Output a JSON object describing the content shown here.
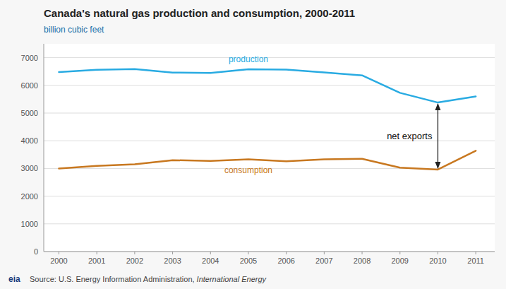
{
  "chart_data": {
    "type": "line",
    "title": "Canada's natural gas production and consumption, 2000-2011",
    "ylabel": "billion cubic feet",
    "x": [
      2000,
      2001,
      2002,
      2003,
      2004,
      2005,
      2006,
      2007,
      2008,
      2009,
      2010,
      2011
    ],
    "series": [
      {
        "name": "production",
        "color": "#29ABE2",
        "values": [
          6480,
          6560,
          6590,
          6460,
          6450,
          6580,
          6570,
          6470,
          6360,
          5730,
          5380,
          5600
        ]
      },
      {
        "name": "consumption",
        "color": "#C87820",
        "values": [
          3000,
          3090,
          3150,
          3300,
          3270,
          3330,
          3260,
          3330,
          3350,
          3030,
          2960,
          3640
        ]
      }
    ],
    "xlim": [
      1999.6,
      2011.5
    ],
    "xticks": [
      2000,
      2001,
      2002,
      2003,
      2004,
      2005,
      2006,
      2007,
      2008,
      2009,
      2010,
      2011
    ],
    "ylim": [
      0,
      7500
    ],
    "yticks": [
      0,
      1000,
      2000,
      3000,
      4000,
      5000,
      6000,
      7000
    ],
    "grid": true,
    "annotations": [
      {
        "text": "net exports",
        "x": 2010.0,
        "y_from": 5380,
        "y_to": 2960
      }
    ],
    "source": "Source: U.S. Energy Information Administration, ",
    "source_italic": "International Energy",
    "logo": "eia"
  }
}
